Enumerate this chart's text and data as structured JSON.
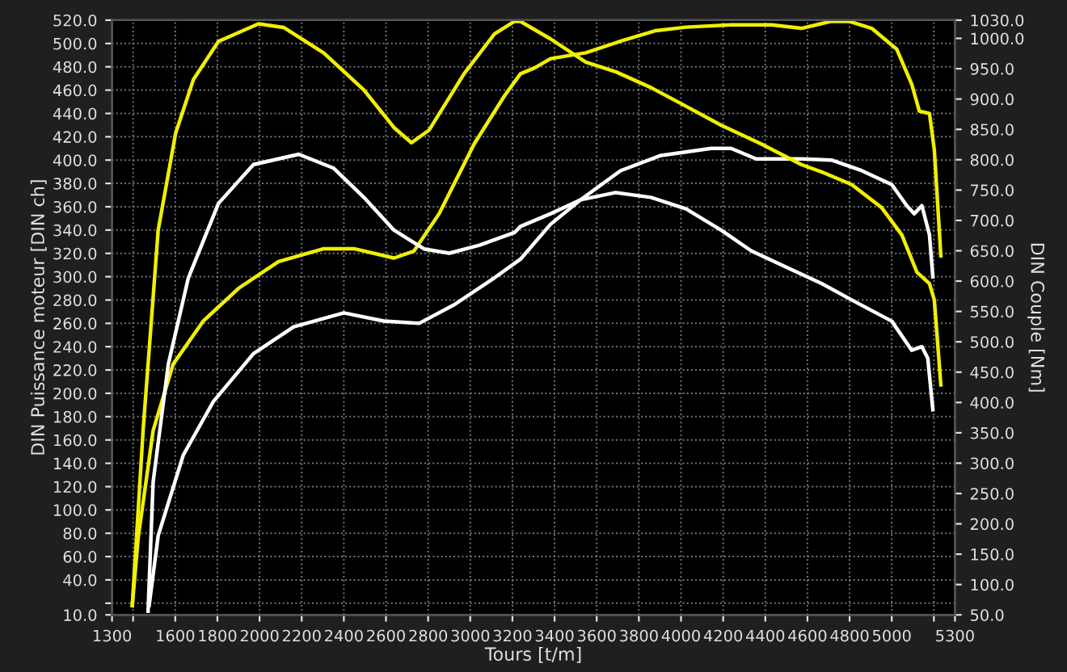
{
  "chart_data": {
    "type": "line",
    "xlabel": "Tours [t/m]",
    "ylabel": "DIN Puissance moteur [DIN ch]",
    "y2label": "DIN Couple [Nm]",
    "xlim": [
      1300,
      5300
    ],
    "xticks": [
      1300,
      {
        "value": 1400,
        "label": null
      },
      1600,
      1800,
      2000,
      2200,
      2400,
      2600,
      2800,
      3000,
      3200,
      3400,
      3600,
      3800,
      4000,
      4200,
      4400,
      4600,
      4800,
      5000,
      {
        "value": 5200,
        "label": null
      },
      5300
    ],
    "ylim": [
      10,
      520
    ],
    "yticks": [
      {
        "value": 10,
        "label": "10.0"
      },
      {
        "value": 20,
        "label": null
      },
      {
        "value": 40,
        "label": "40.0"
      },
      {
        "value": 60,
        "label": "60.0"
      },
      {
        "value": 80,
        "label": "80.0"
      },
      {
        "value": 100,
        "label": "100.0"
      },
      {
        "value": 120,
        "label": "120.0"
      },
      {
        "value": 140,
        "label": "140.0"
      },
      {
        "value": 160,
        "label": "160.0"
      },
      {
        "value": 180,
        "label": "180.0"
      },
      {
        "value": 200,
        "label": "200.0"
      },
      {
        "value": 220,
        "label": "220.0"
      },
      {
        "value": 240,
        "label": "240.0"
      },
      {
        "value": 260,
        "label": "260.0"
      },
      {
        "value": 280,
        "label": "280.0"
      },
      {
        "value": 300,
        "label": "300.0"
      },
      {
        "value": 320,
        "label": "320.0"
      },
      {
        "value": 340,
        "label": "340.0"
      },
      {
        "value": 360,
        "label": "360.0"
      },
      {
        "value": 380,
        "label": "380.0"
      },
      {
        "value": 400,
        "label": "400.0"
      },
      {
        "value": 420,
        "label": "420.0"
      },
      {
        "value": 440,
        "label": "440.0"
      },
      {
        "value": 460,
        "label": "460.0"
      },
      {
        "value": 480,
        "label": "480.0"
      },
      {
        "value": 500,
        "label": "500.0"
      },
      {
        "value": 520,
        "label": "520.0"
      }
    ],
    "y2lim": [
      50,
      1030
    ],
    "y2ticks": [
      {
        "value": 50,
        "label": "50.0"
      },
      {
        "value": 100,
        "label": "100.0"
      },
      {
        "value": 150,
        "label": "150.0"
      },
      {
        "value": 200,
        "label": "200.0"
      },
      {
        "value": 250,
        "label": "250.0"
      },
      {
        "value": 300,
        "label": "300.0"
      },
      {
        "value": 350,
        "label": "350.0"
      },
      {
        "value": 400,
        "label": "400.0"
      },
      {
        "value": 450,
        "label": "450.0"
      },
      {
        "value": 500,
        "label": "500.0"
      },
      {
        "value": 550,
        "label": "550.0"
      },
      {
        "value": 600,
        "label": "600.0"
      },
      {
        "value": 650,
        "label": "650.0"
      },
      {
        "value": 700,
        "label": "700.0"
      },
      {
        "value": 750,
        "label": "750.0"
      },
      {
        "value": 800,
        "label": "800.0"
      },
      {
        "value": 850,
        "label": "850.0"
      },
      {
        "value": 900,
        "label": "900.0"
      },
      {
        "value": 950,
        "label": "950.0"
      },
      {
        "value": 1000,
        "label": "1000.0"
      },
      {
        "value": 1030,
        "label": "1030.0"
      }
    ],
    "grid": true,
    "marker": "none",
    "line_style": "solid",
    "series": [
      {
        "color": "#f0f000",
        "x": [
          1396,
          1424,
          1495,
          1590,
          1733,
          1900,
          2090,
          2305,
          2448,
          2638,
          2733,
          2852,
          3019,
          3162,
          3238,
          3305,
          3381,
          3548,
          3714,
          3881,
          4024,
          4238,
          4429,
          4571,
          4714,
          4798,
          4905,
          5024,
          5095,
          5131,
          5179,
          5202,
          5233
        ],
        "values": [
          18,
          76,
          168,
          225,
          262,
          290,
          313,
          324,
          324,
          316,
          322,
          354,
          414,
          455,
          474,
          479,
          487,
          492,
          502,
          511,
          514,
          516,
          516,
          513,
          519,
          519,
          513,
          495,
          465,
          442,
          440,
          409,
          318
        ]
      },
      {
        "color": "#f0f000",
        "axis": "y2",
        "x": [
          1396,
          1448,
          1519,
          1602,
          1686,
          1805,
          1995,
          2114,
          2305,
          2495,
          2638,
          2721,
          2805,
          2971,
          3114,
          3210,
          3238,
          3381,
          3548,
          3690,
          3857,
          4024,
          4190,
          4381,
          4571,
          4667,
          4810,
          4952,
          5048,
          5119,
          5179,
          5202,
          5233
        ],
        "values": [
          65,
          357,
          684,
          844,
          932,
          995,
          1024,
          1018,
          976,
          915,
          853,
          828,
          849,
          942,
          1007,
          1028,
          1028,
          999,
          961,
          945,
          919,
          888,
          857,
          826,
          792,
          780,
          759,
          721,
          676,
          615,
          596,
          569,
          429
        ]
      },
      {
        "color": "#ffffff",
        "x": [
          1476,
          1519,
          1638,
          1781,
          1971,
          2162,
          2400,
          2590,
          2757,
          2924,
          3114,
          3238,
          3381,
          3524,
          3714,
          3905,
          4143,
          4238,
          4357,
          4571,
          4714,
          4857,
          5000,
          5071,
          5107,
          5143,
          5179,
          5195
        ],
        "values": [
          18,
          78,
          147,
          193,
          234,
          257,
          269,
          262,
          260,
          276,
          299,
          315,
          345,
          366,
          391,
          404,
          410,
          410,
          401,
          401,
          400,
          391,
          379,
          361,
          354,
          361,
          336,
          300
        ]
      },
      {
        "color": "#ffffff",
        "axis": "y2",
        "x": [
          1471,
          1495,
          1567,
          1662,
          1805,
          1971,
          2186,
          2352,
          2495,
          2638,
          2781,
          2900,
          3043,
          3210,
          3238,
          3381,
          3524,
          3690,
          3857,
          4024,
          4190,
          4333,
          4524,
          4667,
          4810,
          5000,
          5095,
          5143,
          5171,
          5195
        ],
        "values": [
          56,
          269,
          463,
          605,
          728,
          792,
          809,
          786,
          738,
          684,
          653,
          646,
          659,
          680,
          690,
          711,
          734,
          746,
          738,
          719,
          684,
          650,
          619,
          596,
          569,
          534,
          486,
          492,
          473,
          388
        ]
      }
    ]
  }
}
